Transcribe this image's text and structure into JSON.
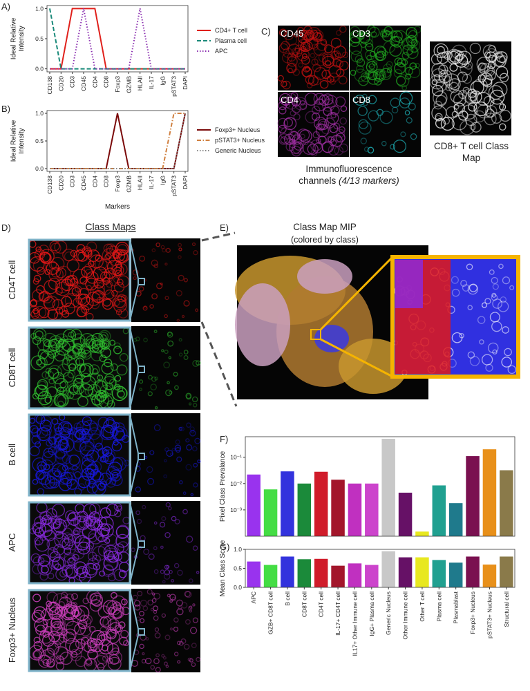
{
  "chart_data": [
    {
      "type": "line",
      "panel_label": "A)",
      "ylabel": "Ideal Relative Intensity",
      "categories": [
        "CD138",
        "CD20",
        "CD3",
        "CD45",
        "CD4",
        "CD8",
        "Foxp3",
        "GZMB",
        "HLAII",
        "IL-17",
        "IgG",
        "pSTAT3",
        "DAPI"
      ],
      "ylim": [
        -0.05,
        1.05
      ],
      "yticks": [
        {
          "value": 0,
          "label": "0.0"
        },
        {
          "value": 0.5,
          "label": "0.5"
        },
        {
          "value": 1,
          "label": "1.0"
        }
      ],
      "legend": "right",
      "series": [
        {
          "name": "CD4+ T cell",
          "color": "#e0201b",
          "linestyle": "solid",
          "values": [
            0,
            0,
            1,
            1,
            1,
            0,
            0,
            0,
            0,
            0,
            0,
            0,
            0
          ]
        },
        {
          "name": "Plasma cell",
          "color": "#1a8a7a",
          "linestyle": "dashed",
          "values": [
            1,
            0,
            0,
            0,
            0,
            0,
            0,
            0,
            0,
            0,
            0,
            0,
            0
          ]
        },
        {
          "name": "APC",
          "color": "#8b2fb0",
          "linestyle": "dotted",
          "values": [
            0,
            0,
            0,
            1,
            0,
            0,
            0,
            0,
            1,
            0,
            0,
            0,
            0
          ]
        }
      ]
    },
    {
      "type": "line",
      "panel_label": "B)",
      "ylabel": "Ideal Relative Intensity",
      "xlabel": "Markers",
      "categories": [
        "CD138",
        "CD20",
        "CD3",
        "CD45",
        "CD4",
        "CD8",
        "Foxp3",
        "GZMB",
        "HLAII",
        "IL-17",
        "IgG",
        "pSTAT3",
        "DAPI"
      ],
      "ylim": [
        -0.05,
        1.05
      ],
      "yticks": [
        {
          "value": 0,
          "label": "0.0"
        },
        {
          "value": 0.5,
          "label": "0.5"
        },
        {
          "value": 1,
          "label": "1.0"
        }
      ],
      "legend": "right",
      "series": [
        {
          "name": "Foxp3+ Nucleus",
          "color": "#7b0a0a",
          "linestyle": "solid",
          "values": [
            0,
            0,
            0,
            0,
            0,
            0,
            1,
            0,
            0,
            0,
            0,
            0,
            1
          ]
        },
        {
          "name": "pSTAT3+ Nucleus",
          "color": "#d08040",
          "linestyle": "dashdot",
          "values": [
            0,
            0,
            0,
            0,
            0,
            0,
            0,
            0,
            0,
            0,
            0,
            1,
            1
          ]
        },
        {
          "name": "Generic Nucleus",
          "color": "#888888",
          "linestyle": "dotted",
          "values": [
            0,
            0,
            0,
            0,
            0,
            0,
            0,
            0,
            0,
            0,
            0,
            0,
            1
          ]
        }
      ]
    },
    {
      "type": "bar",
      "panel_label": "F)",
      "ylabel": "Pixel Class Prevalance",
      "log_scale": true,
      "categories": [
        null,
        null,
        null,
        null,
        null,
        null,
        null,
        null,
        null,
        null,
        null,
        null,
        null,
        null,
        null,
        null
      ],
      "values": [
        0.022,
        0.006,
        0.029,
        0.01,
        0.028,
        0.014,
        0.01,
        0.01,
        0.5,
        0.0045,
        0.00015,
        0.0085,
        0.0018,
        0.11,
        0.2,
        0.032
      ],
      "colors": [
        "#9933ee",
        "#44dd44",
        "#3333dd",
        "#1b8a3a",
        "#d01c2a",
        "#a3162b",
        "#c030c0",
        "#cc44cc",
        "#c8c8c8",
        "#661166",
        "#e8e820",
        "#20a090",
        "#1f7a8c",
        "#7a1050",
        "#e8901a",
        "#8a7a4a"
      ],
      "ylim": [
        0.0001,
        0.6
      ],
      "yticks": [
        {
          "value": 0.001,
          "label": "10⁻³"
        },
        {
          "value": 0.01,
          "label": "10⁻²"
        },
        {
          "value": 0.1,
          "label": "10⁻¹"
        }
      ]
    },
    {
      "type": "bar",
      "panel_label": "G)",
      "ylabel": "Mean Class Score",
      "categories": [
        "APC",
        "GZB+ CD8T cell",
        "B cell",
        "CD8T cell",
        "CD4T cell",
        "IL-17+ CD4T cell",
        "IL17+ Other Immune cell",
        "IgG+ Plasma cell",
        "Generic Nucleus",
        "Other Immune cell",
        "Other T cell",
        "Plasma cell",
        "Plasmablast",
        "Foxp3+ Nucleus",
        "pSTAT3+ Nucleus",
        "Structural cell"
      ],
      "values": [
        0.68,
        0.59,
        0.81,
        0.74,
        0.75,
        0.57,
        0.63,
        0.59,
        0.95,
        0.79,
        0.79,
        0.72,
        0.65,
        0.81,
        0.6,
        0.81
      ],
      "colors": [
        "#9933ee",
        "#44dd44",
        "#3333dd",
        "#1b8a3a",
        "#d01c2a",
        "#a3162b",
        "#c030c0",
        "#cc44cc",
        "#c8c8c8",
        "#661166",
        "#e8e820",
        "#20a090",
        "#1f7a8c",
        "#7a1050",
        "#e8901a",
        "#8a7a4a"
      ],
      "ylim": [
        0,
        1
      ],
      "yticks": [
        {
          "value": 0,
          "label": "0.0"
        },
        {
          "value": 0.5,
          "label": "0.5"
        },
        {
          "value": 1,
          "label": "1.0"
        }
      ]
    }
  ],
  "immunofluorescence": {
    "panel_label": "C)",
    "channels": [
      "CD45",
      "CD3",
      "CD4",
      "CD8"
    ],
    "caption": "Immunofluorescence channels",
    "caption_note": "(4/13 markers)",
    "class_map_caption": "CD8+ T cell Class Map"
  },
  "class_maps": {
    "panel_label": "D)",
    "title": "Class Maps",
    "rows": [
      "CD4T cell",
      "CD8T cell",
      "B cell",
      "APC",
      "Foxp3+ Nucleus"
    ]
  },
  "mip": {
    "panel_label": "E)",
    "title": "Class Map MIP",
    "subtitle": "(colored by class)"
  }
}
